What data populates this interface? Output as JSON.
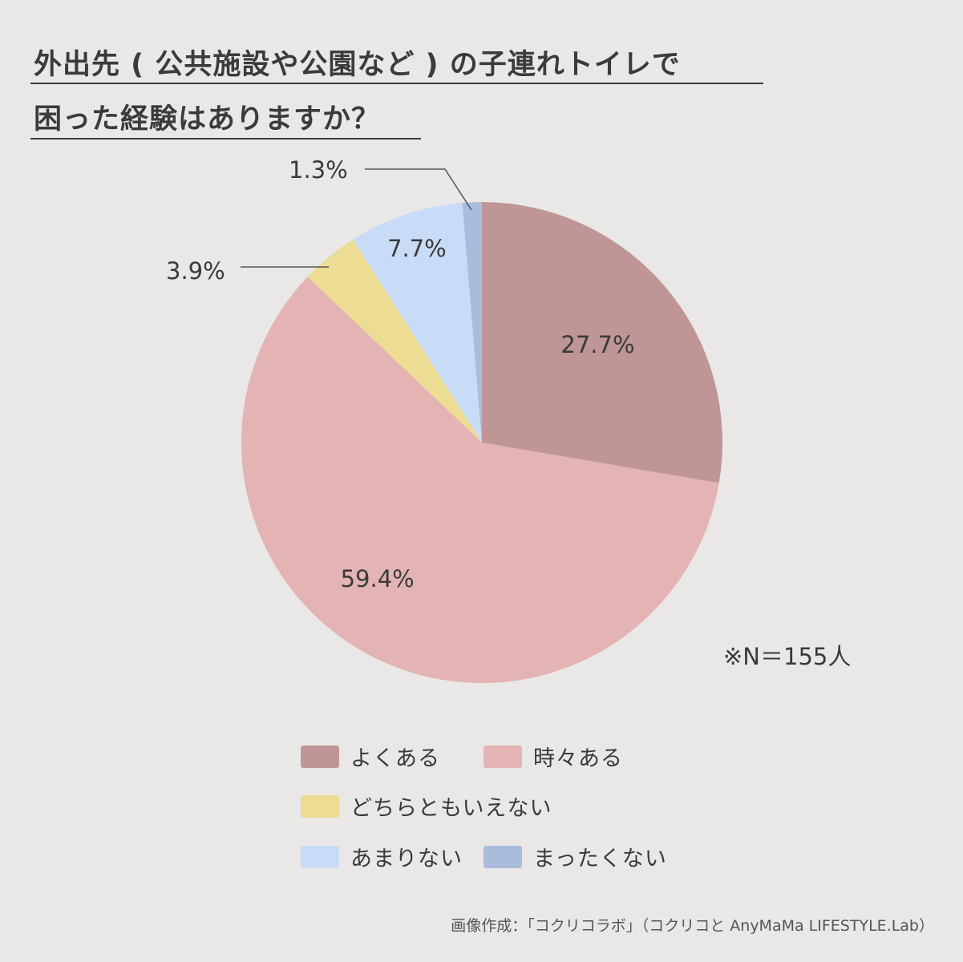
{
  "title": {
    "line1": "外出先 ( 公共施設や公園など ) の子連れトイレで",
    "line2": "困った経験はありますか？"
  },
  "chart_data": {
    "type": "pie",
    "categories": [
      "よくある",
      "時々ある",
      "どちらともいえない",
      "あまりない",
      "まったくない"
    ],
    "values": [
      27.7,
      59.4,
      3.9,
      7.7,
      1.3
    ],
    "data_labels": [
      "27.7%",
      "59.4%",
      "3.9%",
      "7.7%",
      "1.3%"
    ],
    "colors": [
      "#bf9695",
      "#e4b3b4",
      "#ecdc94",
      "#c9dcf7",
      "#a9bcdc"
    ],
    "start_angle_deg": 0,
    "direction": "clockwise",
    "legend_position": "bottom"
  },
  "note": "※N＝155人",
  "credit": "画像作成：「コクリコラボ」（コクリコと AnyMaMa LIFESTYLE.Lab）"
}
